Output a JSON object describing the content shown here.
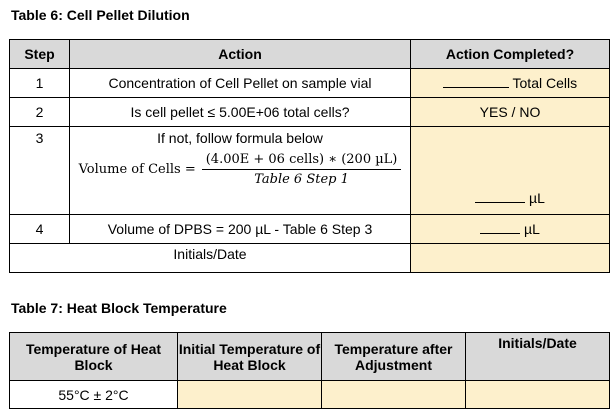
{
  "table6": {
    "title": "Table 6: Cell Pellet Dilution",
    "headers": {
      "step": "Step",
      "action": "Action",
      "completed": "Action Completed?"
    },
    "rows": [
      {
        "step": "1",
        "action": "Concentration of Cell Pellet on sample vial",
        "completed_suffix": "Total Cells"
      },
      {
        "step": "2",
        "action": "Is cell pellet ≤ 5.00E+06 total cells?",
        "completed": "YES / NO"
      },
      {
        "step": "3",
        "action": "If not, follow formula below",
        "completed_suffix": "µL",
        "formula": {
          "lhs": "Volume of Cells =",
          "numerator": "(4.00E + 06 cells) ∗ (200 µL)",
          "denominator": "Table 6 Step 1"
        }
      },
      {
        "step": "4",
        "action": "Volume of DPBS = 200 µL - Table 6 Step 3",
        "completed_suffix": "µL"
      }
    ],
    "initials_label": "Initials/Date"
  },
  "table7": {
    "title": "Table 7: Heat Block Temperature",
    "headers": {
      "temp": "Temperature of Heat Block",
      "initial": "Initial Temperature of Heat Block",
      "after": "Temperature after Adjustment",
      "initials": "Initials/Date"
    },
    "value": "55°C ± 2°C"
  },
  "colors": {
    "header_bg": "#d9d9d9",
    "entry_bg": "#fdf0cc"
  }
}
